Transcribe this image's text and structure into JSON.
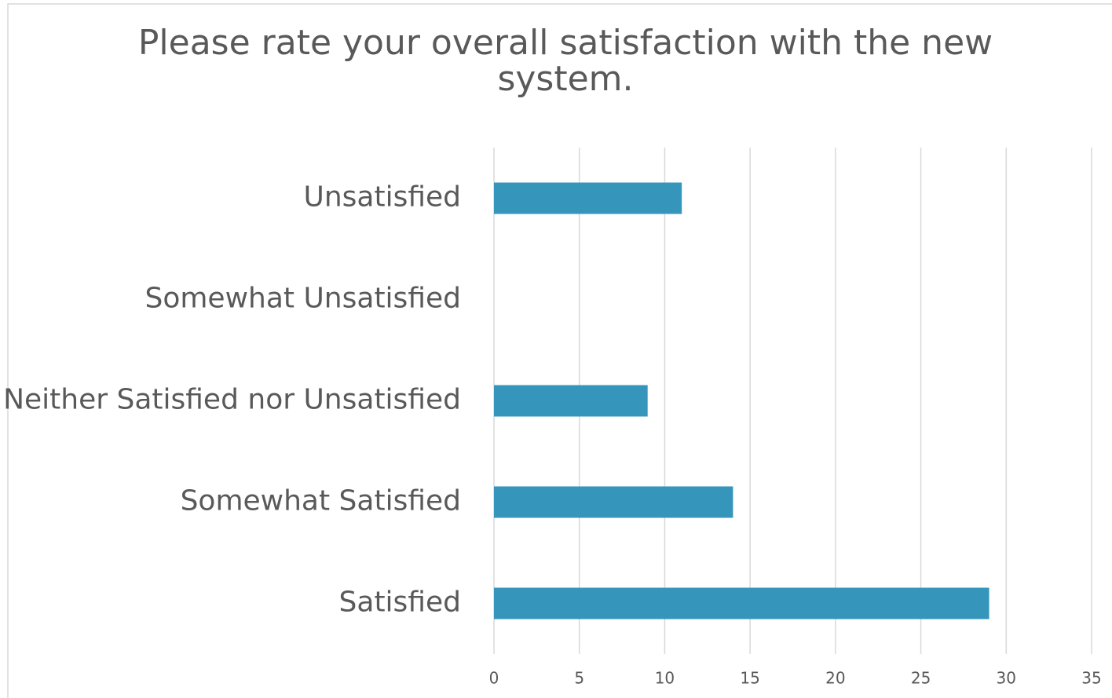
{
  "chart_data": {
    "type": "barh",
    "title": "Please rate your overall satisfaction with the new system.",
    "categories": [
      "Unsatisfied",
      "Somewhat Unsatisfied",
      "Neither Satisfied nor Unsatisfied",
      "Somewhat Satisfied",
      "Satisfied"
    ],
    "values": [
      11,
      0,
      9,
      14,
      29
    ],
    "color": "#3595bb",
    "xlim": [
      0,
      35
    ],
    "xticks": [
      0,
      5,
      10,
      15,
      20,
      25,
      30,
      35
    ],
    "grid": true
  }
}
